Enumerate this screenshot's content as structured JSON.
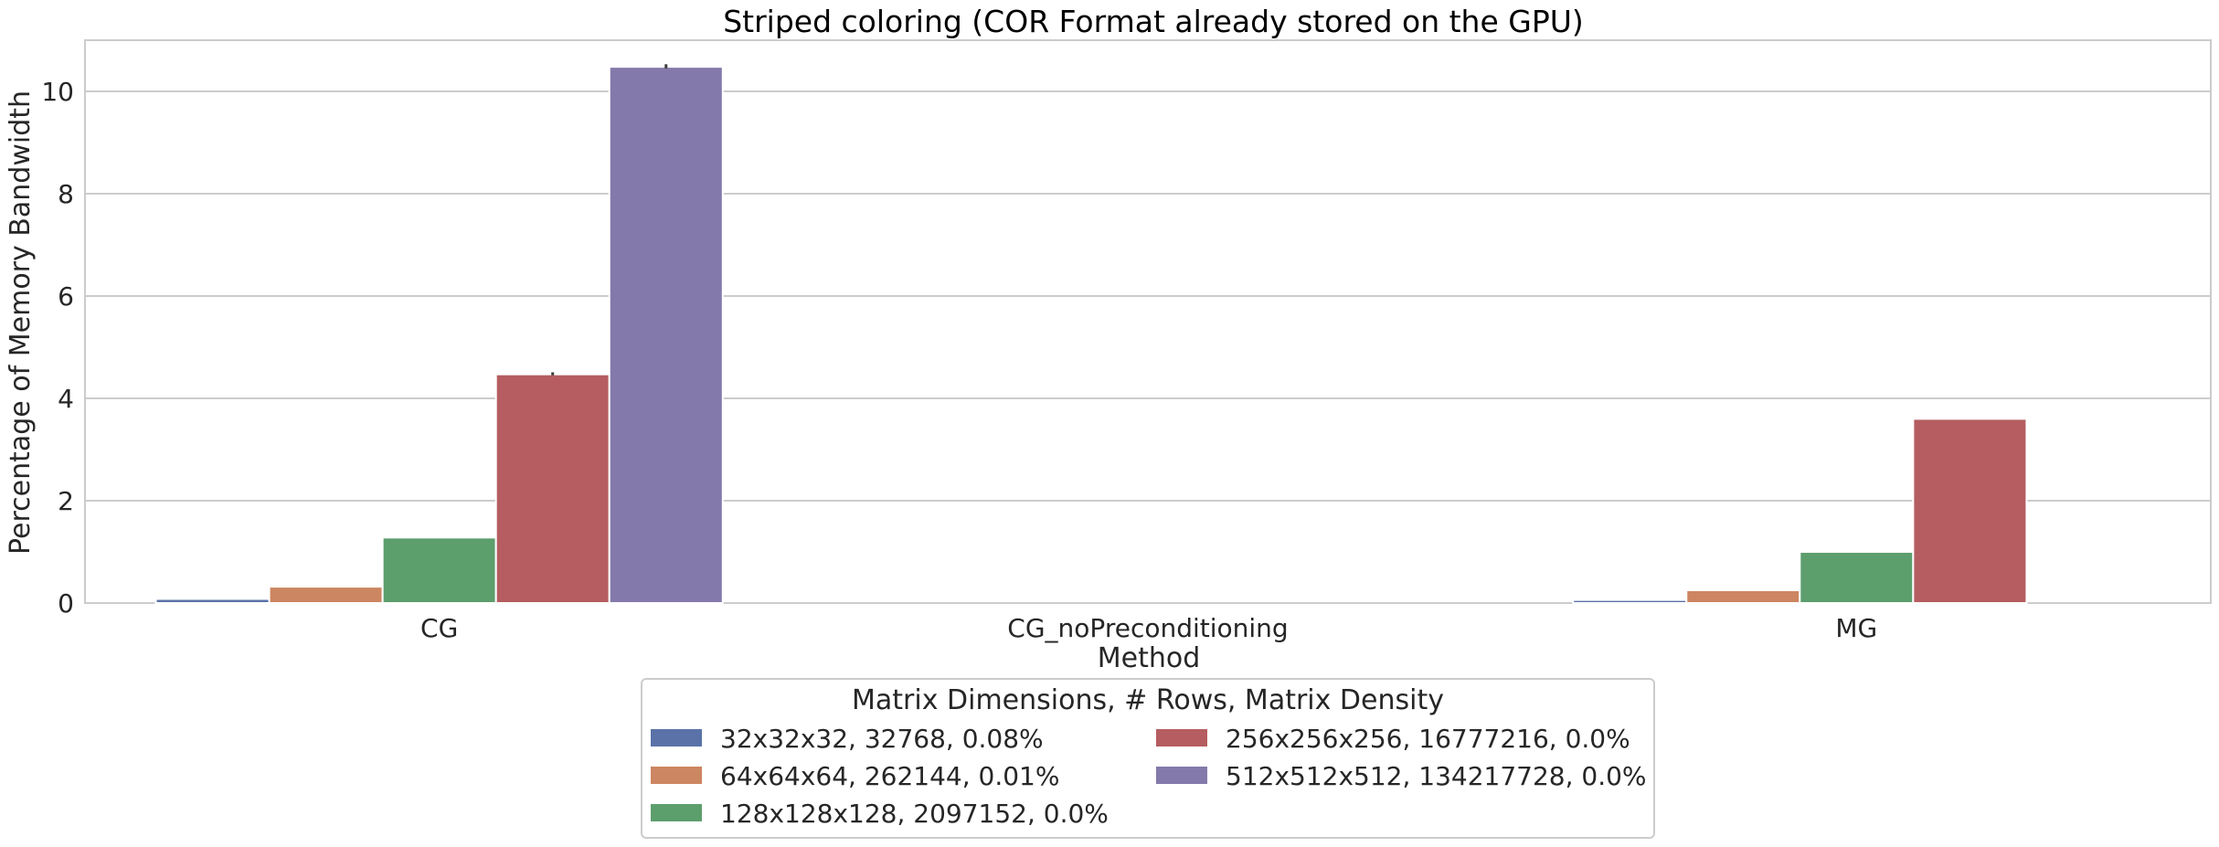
{
  "chart_data": {
    "type": "bar",
    "title": "Striped coloring (COR Format already stored on the GPU)",
    "xlabel": "Method",
    "ylabel": "Percentage of Memory Bandwidth",
    "categories": [
      "CG",
      "CG_noPreconditioning",
      "MG"
    ],
    "ylim": [
      0,
      11
    ],
    "yticks": [
      0,
      2,
      4,
      6,
      8,
      10
    ],
    "grid": true,
    "legend": {
      "title": "Matrix Dimensions, # Rows, Matrix Density",
      "placement": "bottom-center",
      "columns": 2
    },
    "series": [
      {
        "name": "32x32x32, 32768, 0.08%",
        "color": "#5a72a8",
        "values": [
          0.08,
          0,
          0.06
        ]
      },
      {
        "name": "64x64x64, 262144, 0.01%",
        "color": "#cc8661",
        "values": [
          0.32,
          0,
          0.25
        ]
      },
      {
        "name": "128x128x128, 2097152, 0.0%",
        "color": "#5d9e6d",
        "values": [
          1.28,
          0,
          1.0
        ]
      },
      {
        "name": "256x256x256, 16777216, 0.0%",
        "color": "#b55d60",
        "values": [
          4.47,
          0,
          3.6
        ]
      },
      {
        "name": "512x512x512, 134217728, 0.0%",
        "color": "#8479ab",
        "values": [
          10.48,
          0,
          0
        ]
      }
    ],
    "error_bars": [
      {
        "series": 3,
        "category": 0,
        "low": 4.45,
        "high": 4.51
      },
      {
        "series": 4,
        "category": 0,
        "low": 10.45,
        "high": 10.53
      }
    ]
  }
}
